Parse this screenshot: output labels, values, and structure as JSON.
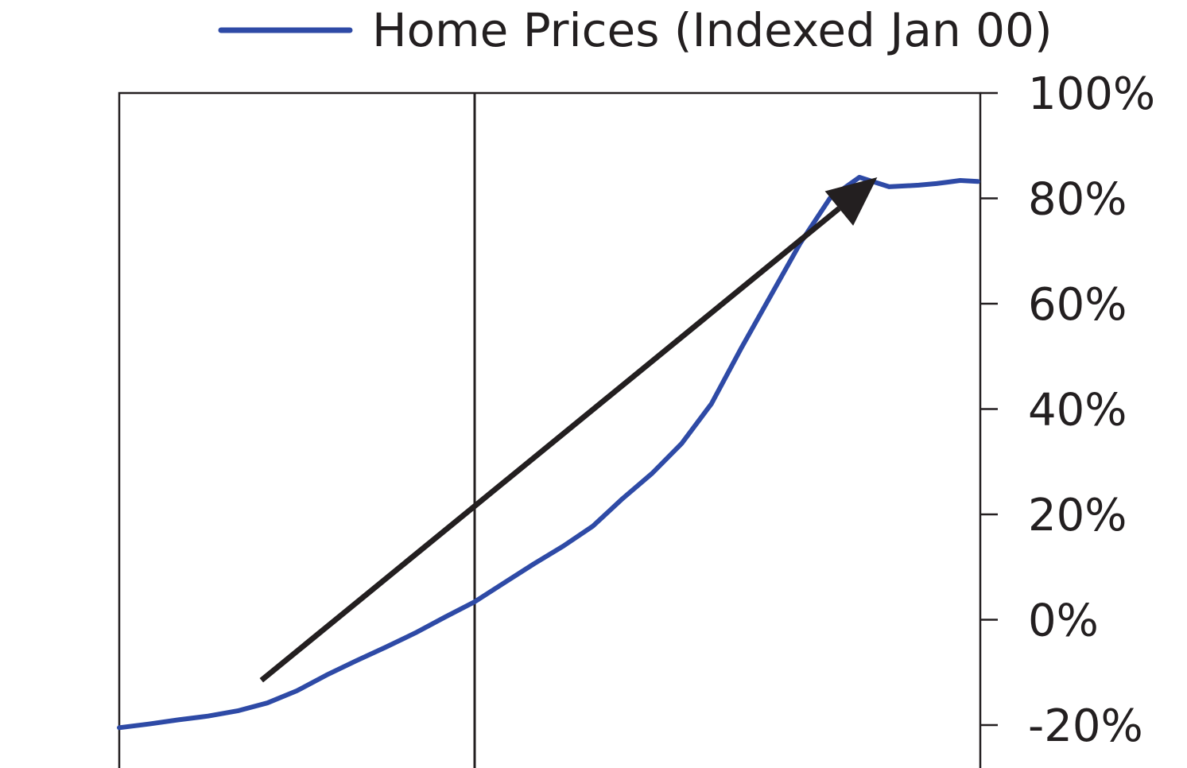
{
  "chart_data": {
    "type": "line",
    "title": "",
    "xlabel": "",
    "ylabel": "",
    "legend": {
      "position": "top-center",
      "entries": [
        {
          "label": "Home Prices (Indexed Jan 00)",
          "color": "#2e4aa6"
        }
      ]
    },
    "y_axis": {
      "side": "right",
      "ylim": [
        -20,
        100
      ],
      "ticks": [
        100,
        80,
        60,
        40,
        20,
        0,
        -20
      ],
      "tick_labels": [
        "100%",
        "80%",
        "60%",
        "40%",
        "20%",
        "0%",
        "-20%"
      ],
      "unit": "%"
    },
    "grid": false,
    "reference_line": {
      "x_index": 60,
      "note": "vertical line at Jan 00 (index = 0%)"
    },
    "series": [
      {
        "name": "Home Prices (Indexed Jan 00)",
        "color": "#2e4aa6",
        "x_index": [
          0,
          5,
          10,
          15,
          20,
          25,
          30,
          35,
          40,
          45,
          50,
          55,
          60,
          65,
          70,
          75,
          80,
          85,
          90,
          95,
          100,
          105,
          110,
          115,
          120,
          125,
          130,
          135,
          138,
          140,
          142,
          145
        ],
        "values": [
          -20.5,
          -19.8,
          -19,
          -18.3,
          -17.3,
          -15.8,
          -13.5,
          -10.5,
          -7.8,
          -5.2,
          -2.5,
          0.5,
          3.4,
          7,
          10.6,
          14,
          17.8,
          23,
          27.8,
          33.5,
          41,
          51.5,
          61.5,
          71.5,
          80,
          84,
          82.2,
          82.5,
          82.8,
          83.1,
          83.4,
          83.2
        ]
      }
    ],
    "annotations": [
      {
        "type": "arrow",
        "from_x_index": 24,
        "from_y": -11.5,
        "to_x_index": 128,
        "to_y": 84,
        "color": "#231f20",
        "note": "upward trend arrow"
      }
    ]
  }
}
